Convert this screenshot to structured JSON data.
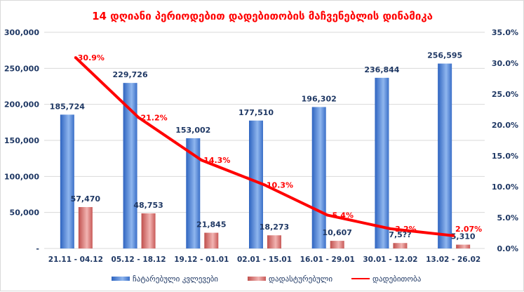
{
  "chart_data": {
    "type": "bar",
    "title": "14 დღიანი პერიოდებით დადებითობის მაჩვენებლის დინამიკა",
    "categories": [
      "21.11 - 04.12",
      "05.12 - 18.12",
      "19.12 - 01.01",
      "02.01 - 15.01",
      "16.01 - 29.01",
      "30.01 - 12.02",
      "13.02 - 26.02"
    ],
    "series": [
      {
        "name": "ჩატარებული კვლევები",
        "type": "bar",
        "axis": "left",
        "color": "#4a7fd0",
        "values": [
          185724,
          229726,
          153002,
          177510,
          196302,
          236844,
          256595
        ],
        "labels": [
          "185,724",
          "229,726",
          "153,002",
          "177,510",
          "196,302",
          "236,844",
          "256,595"
        ]
      },
      {
        "name": "დადასტურებული",
        "type": "bar",
        "axis": "left",
        "color": "#d9706e",
        "values": [
          57470,
          48753,
          21845,
          18273,
          10607,
          7579,
          5310
        ],
        "labels": [
          "57,470",
          "48,753",
          "21,845",
          "18,273",
          "10,607",
          "7,5??",
          "5,310"
        ]
      },
      {
        "name": "დადებითობა",
        "type": "line",
        "axis": "right",
        "color": "#ff0000",
        "values": [
          30.9,
          21.2,
          14.3,
          10.3,
          5.4,
          3.2,
          2.07
        ],
        "labels": [
          "30.9%",
          "21.2%",
          "14.3%",
          "10.3%",
          "5.4%",
          "3.2%",
          "2.07%"
        ]
      }
    ],
    "left_axis": {
      "ylim": [
        0,
        300000
      ],
      "ticks": [
        "-",
        "50,000",
        "100,000",
        "150,000",
        "200,000",
        "250,000",
        "300,000"
      ]
    },
    "right_axis": {
      "ylim": [
        0,
        35
      ],
      "ticks": [
        "0.0%",
        "5.0%",
        "10.0%",
        "15.0%",
        "20.0%",
        "25.0%",
        "30.0%",
        "35.0%"
      ]
    },
    "grid": true,
    "legend": "bottom"
  }
}
